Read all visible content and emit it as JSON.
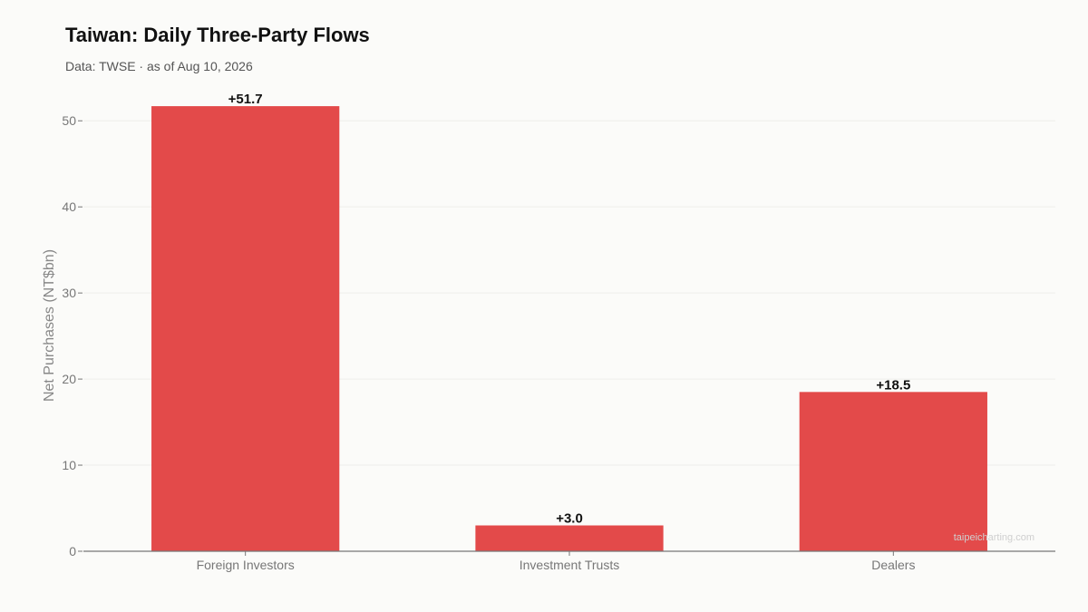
{
  "header": {
    "title": "Taiwan: Daily Three-Party Flows",
    "subtitle": "Data: TWSE · as of Aug 10, 2026"
  },
  "watermark": "taipeicharting.com",
  "colors": {
    "bar": "#e34a4a",
    "grid": "#eeeeea",
    "axis": "#777777"
  },
  "chart_data": {
    "type": "bar",
    "title": "Taiwan: Daily Three-Party Flows",
    "subtitle": "Data: TWSE · as of Aug 10, 2026",
    "xlabel": "",
    "ylabel": "Net Purchases (NT$bn)",
    "categories": [
      "Foreign Investors",
      "Investment Trusts",
      "Dealers"
    ],
    "values": [
      51.7,
      3.0,
      18.5
    ],
    "data_labels": [
      "+51.7",
      "+3.0",
      "+18.5"
    ],
    "ylim": [
      0,
      53.5
    ],
    "yticks": [
      0,
      10,
      20,
      30,
      40,
      50
    ],
    "grid": true,
    "legend": "none"
  }
}
